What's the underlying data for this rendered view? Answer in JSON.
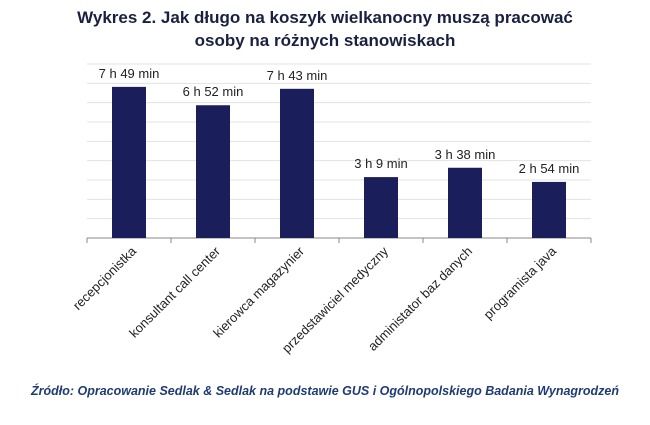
{
  "chart_data": {
    "type": "bar",
    "title_line1": "Wykres 2. Jak długo na koszyk wielkanocny muszą pracować",
    "title_line2": "osoby na różnych stanowiskach",
    "categories": [
      "recepcjonistka",
      "konsultant call center",
      "kierowca magazynier",
      "przedstawiciel medyczny",
      "administator baz danych",
      "programista java"
    ],
    "values_minutes": [
      469,
      412,
      463,
      189,
      218,
      174
    ],
    "data_labels": [
      "7 h 49 min",
      "6 h 52 min",
      "7 h 43 min",
      "3 h 9 min",
      "3 h 38 min",
      "2 h 54 min"
    ],
    "ylim": [
      0,
      540
    ],
    "y_gridline_step": 60,
    "grid": true,
    "bar_color": "#1a1f5c",
    "xlabel": "",
    "ylabel": ""
  },
  "source": "Źródło: Opracowanie Sedlak & Sedlak na podstawie GUS i Ogólnopolskiego Badania Wynagrodzeń"
}
